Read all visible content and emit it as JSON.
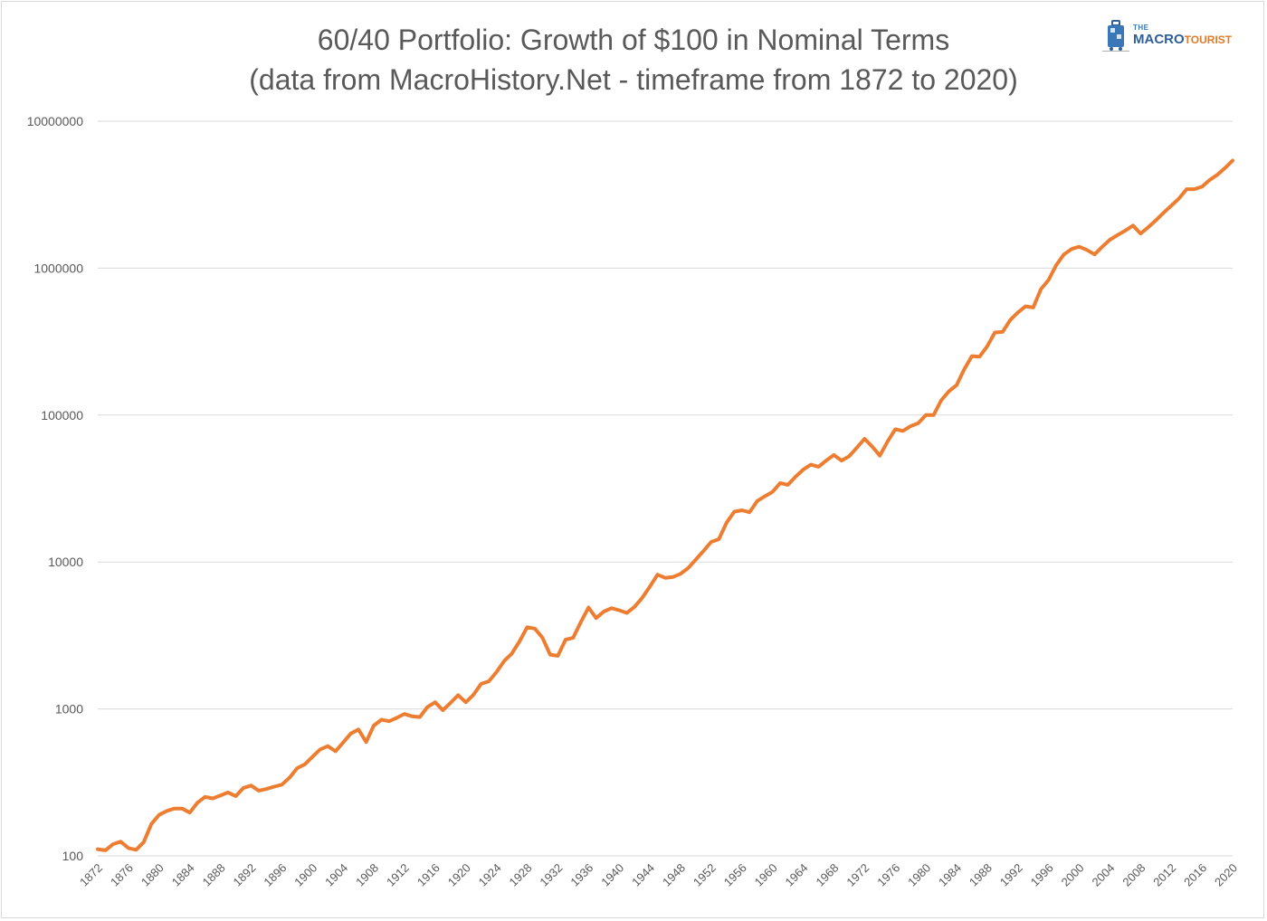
{
  "title_line1": "60/40 Portfolio: Growth of $100 in Nominal Terms",
  "title_line2": "(data from MacroHistory.Net - timeframe from 1872 to 2020)",
  "logo": {
    "the": "THE",
    "macro": "MACRO",
    "tourist": "TOURIST",
    "icon": "suitcase-icon",
    "colors": {
      "macro": "#2f5f97",
      "tourist": "#e07b2a"
    }
  },
  "chart_data": {
    "type": "line",
    "title": "60/40 Portfolio: Growth of $100 in Nominal Terms",
    "subtitle": "(data from MacroHistory.Net - timeframe from 1872 to 2020)",
    "xlabel": "",
    "ylabel": "",
    "y_scale": "log",
    "ylim": [
      100,
      10000000
    ],
    "y_ticks": [
      "100",
      "1000",
      "10000",
      "100000",
      "1000000",
      "10000000"
    ],
    "x_ticks": [
      "1872",
      "1876",
      "1880",
      "1884",
      "1888",
      "1892",
      "1896",
      "1900",
      "1904",
      "1908",
      "1912",
      "1916",
      "1920",
      "1924",
      "1928",
      "1932",
      "1936",
      "1940",
      "1944",
      "1948",
      "1952",
      "1956",
      "1960",
      "1964",
      "1968",
      "1972",
      "1976",
      "1980",
      "1984",
      "1988",
      "1992",
      "1996",
      "2000",
      "2004",
      "2008",
      "2012",
      "2016",
      "2020"
    ],
    "grid": true,
    "legend": "none",
    "line_color": "#ed7d31",
    "series": [
      {
        "x": [
          1872,
          1873,
          1874,
          1875,
          1876,
          1877,
          1878,
          1879,
          1880,
          1881,
          1882,
          1883,
          1884,
          1885,
          1886,
          1887,
          1888,
          1889,
          1890,
          1891,
          1892,
          1893,
          1894,
          1895,
          1896,
          1897,
          1898,
          1899,
          1900,
          1901,
          1902,
          1903,
          1904,
          1905,
          1906,
          1907,
          1908,
          1909,
          1910,
          1911,
          1912,
          1913,
          1914,
          1915,
          1916,
          1917,
          1918,
          1919,
          1920,
          1921,
          1922,
          1923,
          1924,
          1925,
          1926,
          1927,
          1928,
          1929,
          1930,
          1931,
          1932,
          1933,
          1934,
          1935,
          1936,
          1937,
          1938,
          1939,
          1940,
          1941,
          1942,
          1943,
          1944,
          1945,
          1946,
          1947,
          1948,
          1949,
          1950,
          1951,
          1952,
          1953,
          1954,
          1955,
          1956,
          1957,
          1958,
          1959,
          1960,
          1961,
          1962,
          1963,
          1964,
          1965,
          1966,
          1967,
          1968,
          1969,
          1970,
          1971,
          1972,
          1973,
          1974,
          1975,
          1976,
          1977,
          1978,
          1979,
          1980,
          1981,
          1982,
          1983,
          1984,
          1985,
          1986,
          1987,
          1988,
          1989,
          1990,
          1991,
          1992,
          1993,
          1994,
          1995,
          1996,
          1997,
          1998,
          1999,
          2000,
          2001,
          2002,
          2003,
          2004,
          2005,
          2006,
          2007,
          2008,
          2009,
          2010,
          2011,
          2012,
          2013,
          2014,
          2015,
          2016,
          2017,
          2018,
          2019,
          2020
        ],
        "y": [
          111,
          109,
          120,
          125,
          113,
          110,
          124,
          165,
          190,
          202,
          210,
          210,
          197,
          230,
          252,
          246,
          258,
          270,
          255,
          290,
          301,
          278,
          285,
          296,
          305,
          340,
          395,
          420,
          472,
          530,
          558,
          515,
          590,
          680,
          725,
          595,
          770,
          845,
          825,
          870,
          925,
          890,
          880,
          1030,
          1110,
          980,
          1100,
          1240,
          1110,
          1250,
          1480,
          1540,
          1780,
          2120,
          2380,
          2880,
          3600,
          3520,
          3050,
          2340,
          2300,
          2960,
          3050,
          3900,
          4900,
          4150,
          4600,
          4850,
          4700,
          4500,
          4950,
          5700,
          6800,
          8200,
          7800,
          7900,
          8300,
          9100,
          10400,
          11900,
          13700,
          14300,
          18500,
          22000,
          22500,
          21800,
          26000,
          28000,
          30000,
          34500,
          33500,
          38000,
          42500,
          46000,
          44500,
          49000,
          53500,
          49000,
          52500,
          60000,
          69000,
          61000,
          53000,
          66000,
          80000,
          78000,
          84000,
          88000,
          100000,
          100000,
          126000,
          145000,
          160000,
          205000,
          252000,
          250000,
          294000,
          365000,
          368000,
          444000,
          500000,
          550000,
          540000,
          720000,
          830000,
          1050000,
          1240000,
          1350000,
          1400000,
          1330000,
          1240000,
          1400000,
          1560000,
          1680000,
          1800000,
          1950000,
          1720000,
          1900000,
          2120000,
          2380000,
          2660000,
          2980000,
          3450000,
          3450000,
          3580000,
          3980000,
          4320000,
          4800000,
          5400000
        ]
      }
    ]
  }
}
